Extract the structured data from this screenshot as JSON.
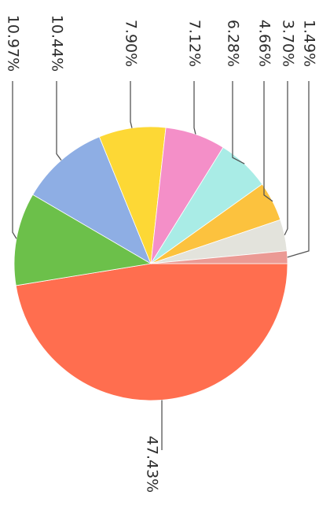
{
  "chart_data": {
    "type": "pie",
    "title": "",
    "slices": [
      {
        "value": 47.43,
        "label": "47.43%",
        "color": "#ff6e4f"
      },
      {
        "value": 10.97,
        "label": "10.97%",
        "color": "#6cc04a"
      },
      {
        "value": 10.44,
        "label": "10.44%",
        "color": "#8eaee4"
      },
      {
        "value": 7.9,
        "label": "7.90%",
        "color": "#fdd835"
      },
      {
        "value": 7.12,
        "label": "7.12%",
        "color": "#f48fc8"
      },
      {
        "value": 6.28,
        "label": "6.28%",
        "color": "#a9ece6"
      },
      {
        "value": 4.66,
        "label": "4.66%",
        "color": "#fcc23e"
      },
      {
        "value": 3.7,
        "label": "3.70%",
        "color": "#e3e3dc"
      },
      {
        "value": 1.49,
        "label": "1.49%",
        "color": "#eb9a94"
      }
    ],
    "legend": "none",
    "label_position": "outside with leader lines"
  }
}
